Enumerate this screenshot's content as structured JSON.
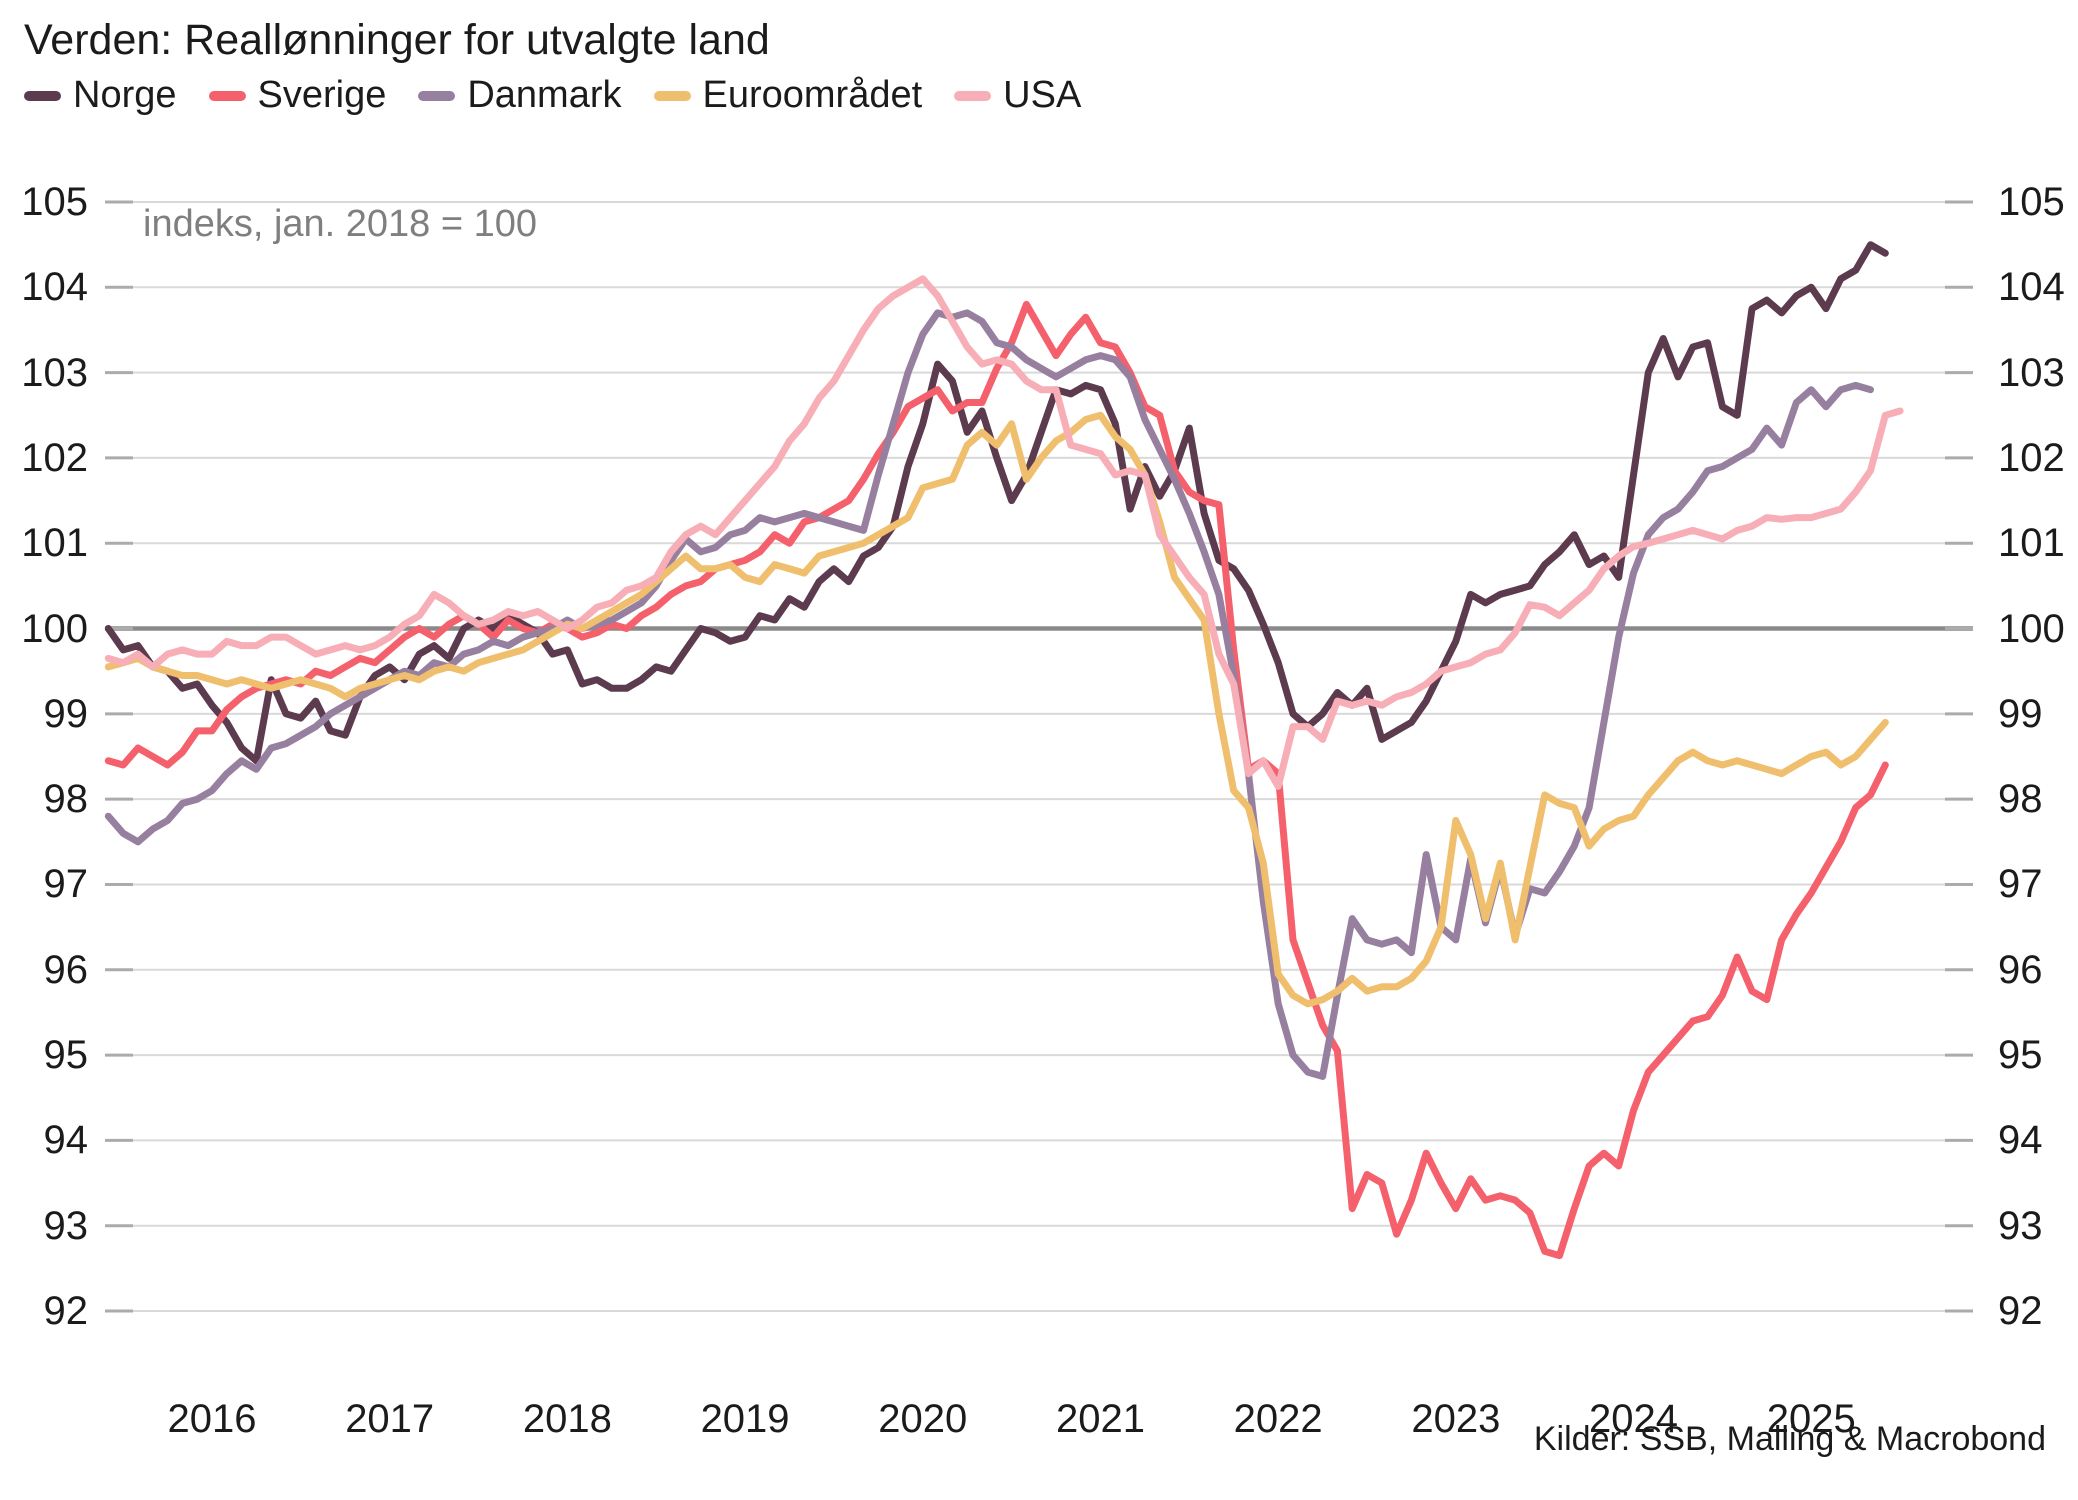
{
  "title": "Verden: Reallønninger for utvalgte land",
  "annotation": "indeks, jan. 2018 = 100",
  "source": "Kilder: SSB, Malling & Macrobond",
  "colors": {
    "gridline": "#d9d9d9",
    "baseline": "#8a8a8a",
    "tick": "#ababab",
    "text": "#1b1b1b",
    "annotation_text": "#7f7f7f"
  },
  "chart_data": {
    "type": "line",
    "title": "Verden: Reallønninger for utvalgte land",
    "subtitle": "indeks, jan. 2018 = 100",
    "legend_position": "top",
    "grid": true,
    "ylim": [
      92,
      105
    ],
    "y_ticks": [
      92,
      93,
      94,
      95,
      96,
      97,
      98,
      99,
      100,
      101,
      102,
      103,
      104,
      105
    ],
    "baseline": 100,
    "x_year_labels": [
      2016,
      2017,
      2018,
      2019,
      2020,
      2021,
      2022,
      2023,
      2024,
      2025
    ],
    "start_month": "2015-06",
    "frequency": "monthly",
    "series": [
      {
        "name": "Norge",
        "color": "#5c3b4f",
        "values": [
          100.0,
          99.75,
          99.8,
          99.55,
          99.5,
          99.3,
          99.35,
          99.1,
          98.9,
          98.6,
          98.45,
          99.4,
          99.0,
          98.95,
          99.15,
          98.8,
          98.75,
          99.2,
          99.45,
          99.55,
          99.4,
          99.7,
          99.8,
          99.65,
          100.0,
          100.1,
          100.0,
          100.15,
          100.05,
          99.95,
          99.7,
          99.75,
          99.35,
          99.4,
          99.3,
          99.3,
          99.4,
          99.55,
          99.5,
          99.75,
          100.0,
          99.95,
          99.85,
          99.9,
          100.15,
          100.1,
          100.35,
          100.25,
          100.55,
          100.7,
          100.55,
          100.85,
          100.95,
          101.2,
          101.9,
          102.4,
          103.1,
          102.9,
          102.3,
          102.55,
          102.0,
          101.5,
          101.8,
          102.3,
          102.8,
          102.75,
          102.85,
          102.8,
          102.4,
          101.4,
          101.9,
          101.55,
          101.85,
          102.35,
          101.35,
          100.8,
          100.7,
          100.45,
          100.05,
          99.6,
          99.0,
          98.85,
          99.0,
          99.25,
          99.1,
          99.3,
          98.7,
          98.8,
          98.9,
          99.15,
          99.5,
          99.85,
          100.4,
          100.3,
          100.4,
          100.45,
          100.5,
          100.75,
          100.9,
          101.1,
          100.75,
          100.85,
          100.6,
          101.8,
          103.0,
          103.4,
          102.95,
          103.3,
          103.35,
          102.6,
          102.5,
          103.75,
          103.85,
          103.7,
          103.9,
          104.0,
          103.75,
          104.1,
          104.2,
          104.5,
          104.4,
          null
        ]
      },
      {
        "name": "Sverige",
        "color": "#f4606b",
        "values": [
          98.45,
          98.4,
          98.6,
          98.5,
          98.4,
          98.55,
          98.8,
          98.8,
          99.05,
          99.2,
          99.3,
          99.35,
          99.4,
          99.35,
          99.5,
          99.45,
          99.55,
          99.65,
          99.6,
          99.75,
          99.9,
          100.0,
          99.9,
          100.05,
          100.15,
          100.05,
          99.9,
          100.1,
          100.0,
          99.95,
          100.05,
          100.0,
          99.9,
          99.95,
          100.05,
          100.0,
          100.15,
          100.25,
          100.4,
          100.5,
          100.55,
          100.7,
          100.75,
          100.8,
          100.9,
          101.1,
          101.0,
          101.25,
          101.3,
          101.4,
          101.5,
          101.75,
          102.05,
          102.3,
          102.6,
          102.7,
          102.8,
          102.55,
          102.65,
          102.65,
          103.05,
          103.35,
          103.8,
          103.5,
          103.2,
          103.45,
          103.65,
          103.35,
          103.3,
          103.0,
          102.6,
          102.5,
          101.85,
          101.6,
          101.5,
          101.45,
          99.75,
          98.35,
          98.45,
          98.3,
          96.35,
          95.85,
          95.35,
          95.05,
          93.2,
          93.6,
          93.5,
          92.9,
          93.3,
          93.85,
          93.5,
          93.2,
          93.55,
          93.3,
          93.35,
          93.3,
          93.15,
          92.7,
          92.65,
          93.2,
          93.7,
          93.85,
          93.7,
          94.35,
          94.8,
          95.0,
          95.2,
          95.4,
          95.45,
          95.7,
          96.15,
          95.75,
          95.65,
          96.35,
          96.65,
          96.9,
          97.2,
          97.5,
          97.9,
          98.05,
          98.4,
          null
        ]
      },
      {
        "name": "Danmark",
        "color": "#97809f",
        "values": [
          97.8,
          97.6,
          97.5,
          97.65,
          97.75,
          97.95,
          98.0,
          98.1,
          98.3,
          98.45,
          98.35,
          98.6,
          98.65,
          98.75,
          98.85,
          99.0,
          99.1,
          99.2,
          99.3,
          99.4,
          99.5,
          99.45,
          99.6,
          99.55,
          99.7,
          99.75,
          99.85,
          99.8,
          99.9,
          99.95,
          100.0,
          100.1,
          100.0,
          100.05,
          100.1,
          100.2,
          100.3,
          100.5,
          100.8,
          101.05,
          100.9,
          100.95,
          101.1,
          101.15,
          101.3,
          101.25,
          101.3,
          101.35,
          101.3,
          101.25,
          101.2,
          101.15,
          101.8,
          102.4,
          103.0,
          103.45,
          103.7,
          103.65,
          103.7,
          103.6,
          103.35,
          103.3,
          103.15,
          103.05,
          102.95,
          103.05,
          103.15,
          103.2,
          103.15,
          102.95,
          102.45,
          102.1,
          101.75,
          101.35,
          100.9,
          100.4,
          99.45,
          98.3,
          96.8,
          95.6,
          95.0,
          94.8,
          94.75,
          95.7,
          96.6,
          96.35,
          96.3,
          96.35,
          96.2,
          97.35,
          96.5,
          96.35,
          97.3,
          96.55,
          97.2,
          96.4,
          96.95,
          96.9,
          97.15,
          97.45,
          97.9,
          98.9,
          99.9,
          100.65,
          101.1,
          101.3,
          101.4,
          101.6,
          101.85,
          101.9,
          102.0,
          102.1,
          102.35,
          102.15,
          102.65,
          102.8,
          102.6,
          102.8,
          102.85,
          102.8,
          null,
          null
        ]
      },
      {
        "name": "Euroområdet",
        "color": "#efbf6e",
        "values": [
          99.55,
          99.6,
          99.65,
          99.55,
          99.5,
          99.45,
          99.45,
          99.4,
          99.35,
          99.4,
          99.35,
          99.3,
          99.35,
          99.4,
          99.35,
          99.3,
          99.2,
          99.3,
          99.35,
          99.4,
          99.45,
          99.4,
          99.5,
          99.55,
          99.5,
          99.6,
          99.65,
          99.7,
          99.75,
          99.85,
          99.95,
          100.05,
          100.0,
          100.1,
          100.2,
          100.3,
          100.4,
          100.55,
          100.7,
          100.85,
          100.7,
          100.7,
          100.75,
          100.6,
          100.55,
          100.75,
          100.7,
          100.65,
          100.85,
          100.9,
          100.95,
          101.0,
          101.1,
          101.2,
          101.3,
          101.65,
          101.7,
          101.75,
          102.15,
          102.3,
          102.15,
          102.4,
          101.75,
          102.0,
          102.2,
          102.3,
          102.45,
          102.5,
          102.25,
          102.1,
          101.8,
          101.25,
          100.6,
          100.35,
          100.1,
          99.0,
          98.1,
          97.9,
          97.25,
          95.95,
          95.7,
          95.6,
          95.65,
          95.75,
          95.9,
          95.75,
          95.8,
          95.8,
          95.9,
          96.1,
          96.5,
          97.75,
          97.35,
          96.6,
          97.25,
          96.35,
          97.2,
          98.05,
          97.95,
          97.9,
          97.45,
          97.65,
          97.75,
          97.8,
          98.05,
          98.25,
          98.45,
          98.55,
          98.45,
          98.4,
          98.45,
          98.4,
          98.35,
          98.3,
          98.4,
          98.5,
          98.55,
          98.4,
          98.5,
          98.7,
          98.9,
          null
        ]
      },
      {
        "name": "USA",
        "color": "#f7aeb6",
        "values": [
          99.65,
          99.6,
          99.7,
          99.55,
          99.7,
          99.75,
          99.7,
          99.7,
          99.85,
          99.8,
          99.8,
          99.9,
          99.9,
          99.8,
          99.7,
          99.75,
          99.8,
          99.75,
          99.8,
          99.9,
          100.05,
          100.15,
          100.4,
          100.3,
          100.15,
          100.05,
          100.1,
          100.2,
          100.15,
          100.2,
          100.1,
          100.0,
          100.1,
          100.25,
          100.3,
          100.45,
          100.5,
          100.6,
          100.9,
          101.1,
          101.2,
          101.1,
          101.3,
          101.5,
          101.7,
          101.9,
          102.2,
          102.4,
          102.7,
          102.9,
          103.2,
          103.5,
          103.75,
          103.9,
          104.0,
          104.1,
          103.9,
          103.6,
          103.3,
          103.1,
          103.15,
          103.1,
          102.9,
          102.8,
          102.8,
          102.15,
          102.1,
          102.05,
          101.8,
          101.85,
          101.8,
          101.1,
          100.85,
          100.6,
          100.4,
          99.7,
          99.35,
          98.3,
          98.45,
          98.15,
          98.85,
          98.85,
          98.7,
          99.15,
          99.1,
          99.15,
          99.1,
          99.2,
          99.25,
          99.35,
          99.5,
          99.55,
          99.6,
          99.7,
          99.75,
          99.95,
          100.28,
          100.25,
          100.15,
          100.3,
          100.45,
          100.7,
          100.85,
          100.96,
          101.0,
          101.05,
          101.1,
          101.15,
          101.1,
          101.05,
          101.15,
          101.2,
          101.3,
          101.28,
          101.3,
          101.3,
          101.35,
          101.4,
          101.6,
          101.85,
          102.5,
          102.55
        ]
      }
    ]
  }
}
